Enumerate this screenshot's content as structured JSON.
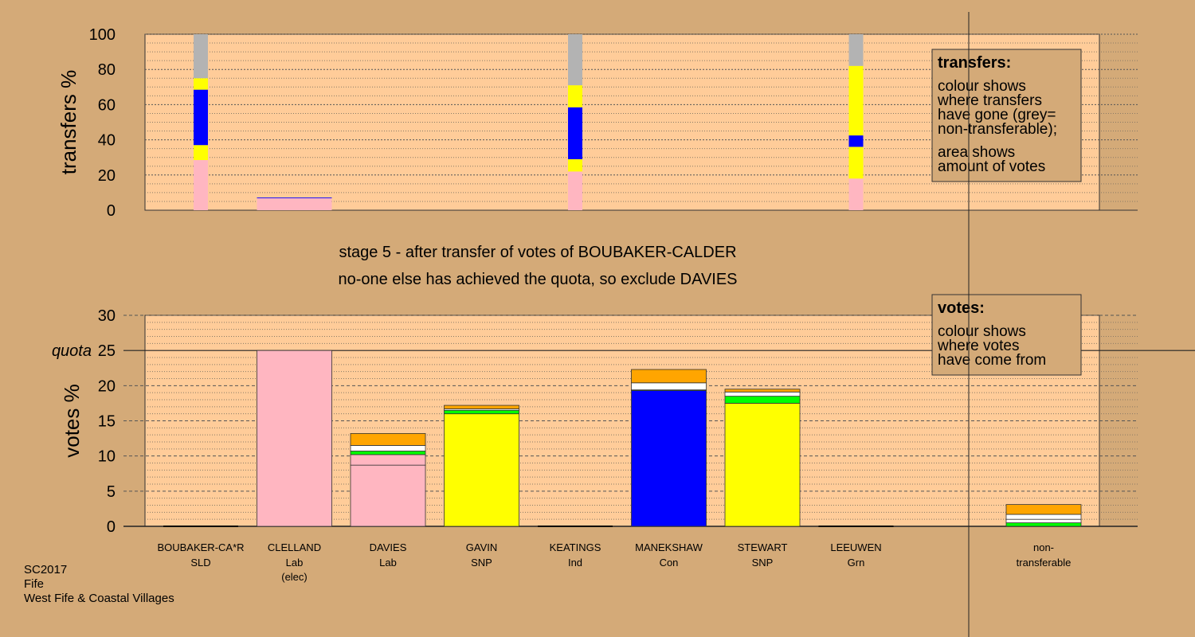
{
  "chart_data": {
    "type": "bar",
    "stage_title": "stage 5 - after transfer of votes of BOUBAKER-CALDER",
    "stage_subtitle": "no-one else has achieved the quota, so exclude DAVIES",
    "footer": [
      "SC2017",
      "Fife",
      "West Fife & Coastal Villages"
    ],
    "colors": {
      "SLD": "#ffa500",
      "Lab": "#ffb6c1",
      "SNP": "#ffff00",
      "Ind": "#ffffff",
      "Con": "#0000ff",
      "Grn": "#00ff00",
      "nontransferable": "#b3b3b3",
      "panel": "#ffcc99",
      "background": "#d4aa78"
    },
    "transfers_chart": {
      "ylabel": "transfers %",
      "ylim": [
        0,
        100
      ],
      "yticks": [
        0,
        20,
        40,
        60,
        80,
        100
      ],
      "bars": [
        {
          "column": 0,
          "width": "narrow",
          "segments": [
            {
              "party": "Lab",
              "value": 28.5
            },
            {
              "party": "SNP",
              "value": 8.5
            },
            {
              "party": "Con",
              "value": 31.5
            },
            {
              "party": "SNP",
              "value": 6.5
            },
            {
              "party": "nontransferable",
              "value": 25
            }
          ]
        },
        {
          "column": 1,
          "width": "full",
          "segments": [
            {
              "party": "Lab",
              "value": 6.8
            },
            {
              "party": "Con",
              "value": 0.4
            }
          ]
        },
        {
          "column": 4,
          "width": "narrow",
          "segments": [
            {
              "party": "Lab",
              "value": 22
            },
            {
              "party": "SNP",
              "value": 7
            },
            {
              "party": "Con",
              "value": 29.5
            },
            {
              "party": "SNP",
              "value": 12.5
            },
            {
              "party": "nontransferable",
              "value": 29
            }
          ]
        },
        {
          "column": 7,
          "width": "narrow",
          "segments": [
            {
              "party": "Lab",
              "value": 18
            },
            {
              "party": "SNP",
              "value": 18
            },
            {
              "party": "Con",
              "value": 6.5
            },
            {
              "party": "SNP",
              "value": 39.5
            },
            {
              "party": "nontransferable",
              "value": 18
            }
          ]
        }
      ],
      "legend": {
        "title": "transfers:",
        "lines": [
          "colour shows",
          "where transfers",
          "have gone (grey=",
          "non-transferable);"
        ],
        "lines2": [
          "area shows",
          "amount of votes"
        ]
      }
    },
    "votes_chart": {
      "ylabel": "votes %",
      "ylim": [
        0,
        30
      ],
      "yticks": [
        0,
        5,
        10,
        15,
        20,
        25,
        30
      ],
      "quota": 25,
      "quota_label": "quota",
      "legend": {
        "title": "votes:",
        "lines": [
          "colour shows",
          "where votes",
          "have come from"
        ]
      },
      "candidates": [
        {
          "name": "BOUBAKER-CA*R",
          "party": "SLD",
          "note": "",
          "segments": []
        },
        {
          "name": "CLELLAND",
          "party": "Lab",
          "note": "(elec)",
          "segments": [
            {
              "party": "Lab",
              "value": 25
            }
          ]
        },
        {
          "name": "DAVIES",
          "party": "Lab",
          "note": "",
          "segments": [
            {
              "party": "Lab",
              "value": 8.7
            },
            {
              "party": "Lab",
              "value": 1.5
            },
            {
              "party": "Grn",
              "value": 0.5
            },
            {
              "party": "Ind",
              "value": 0.8
            },
            {
              "party": "SLD",
              "value": 1.7
            }
          ]
        },
        {
          "name": "GAVIN",
          "party": "SNP",
          "note": "",
          "segments": [
            {
              "party": "SNP",
              "value": 16
            },
            {
              "party": "Grn",
              "value": 0.5
            },
            {
              "party": "Ind",
              "value": 0.2
            },
            {
              "party": "SLD",
              "value": 0.5
            }
          ]
        },
        {
          "name": "KEATINGS",
          "party": "Ind",
          "note": "",
          "segments": []
        },
        {
          "name": "MANEKSHAW",
          "party": "Con",
          "note": "",
          "segments": [
            {
              "party": "Con",
              "value": 19.3
            },
            {
              "party": "Grn",
              "value": 0.1
            },
            {
              "party": "Ind",
              "value": 1
            },
            {
              "party": "SLD",
              "value": 1.9
            }
          ]
        },
        {
          "name": "STEWART",
          "party": "SNP",
          "note": "",
          "segments": [
            {
              "party": "SNP",
              "value": 17.5
            },
            {
              "party": "Grn",
              "value": 1
            },
            {
              "party": "Ind",
              "value": 0.6
            },
            {
              "party": "SLD",
              "value": 0.4
            }
          ]
        },
        {
          "name": "LEEUWEN",
          "party": "Grn",
          "note": "",
          "segments": []
        }
      ],
      "nontransferable": {
        "label": [
          "non-",
          "transferable"
        ],
        "segments": [
          {
            "party": "Grn",
            "value": 0.5
          },
          {
            "party": "Ind",
            "value": 0.5
          },
          {
            "party": "Ind",
            "value": 0.7
          },
          {
            "party": "SLD",
            "value": 1.4
          }
        ]
      }
    }
  }
}
